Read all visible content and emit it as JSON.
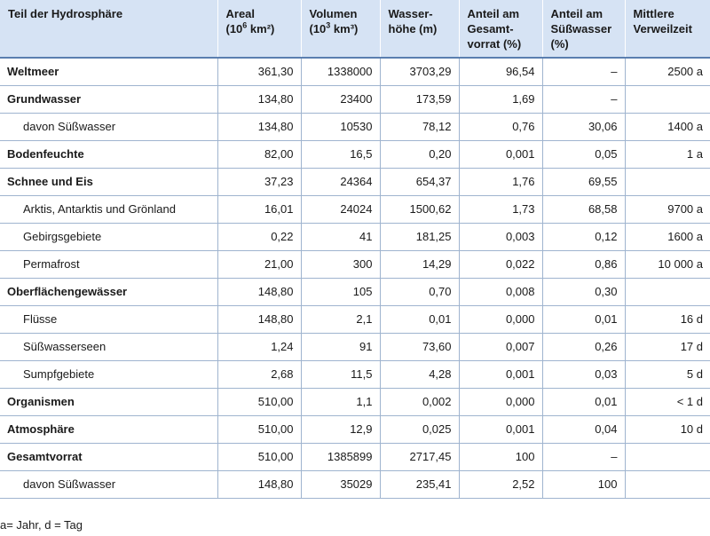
{
  "headers": [
    {
      "text": "Teil der Hydrosphäre"
    },
    {
      "text": "Areal",
      "line2": "(10",
      "sup": "6",
      "line2b": " km²)"
    },
    {
      "text": "Volumen",
      "line2": "(10",
      "sup": "3",
      "line2b": " km³)"
    },
    {
      "text": "Wasser-",
      "line2": "höhe (m)"
    },
    {
      "text": "Anteil am",
      "line2": "Gesamt-",
      "line3": "vorrat (%)"
    },
    {
      "text": "Anteil am",
      "line2": "Süßwasser",
      "line3": "(%)"
    },
    {
      "text": "Mittlere",
      "line2": "Verweilzeit"
    }
  ],
  "rows": [
    {
      "name": "Weltmeer",
      "style": "bold",
      "cells": [
        "361,30",
        "1338000",
        "3703,29",
        "96,54",
        "–",
        "2500 a"
      ]
    },
    {
      "name": "Grundwasser",
      "style": "bold",
      "cells": [
        "134,80",
        "23400",
        "173,59",
        "1,69",
        "–",
        ""
      ]
    },
    {
      "name": "davon Süßwasser",
      "style": "indent",
      "cells": [
        "134,80",
        "10530",
        "78,12",
        "0,76",
        "30,06",
        "1400 a"
      ]
    },
    {
      "name": "Bodenfeuchte",
      "style": "bold",
      "cells": [
        "82,00",
        "16,5",
        "0,20",
        "0,001",
        "0,05",
        "1 a"
      ]
    },
    {
      "name": "Schnee und Eis",
      "style": "bold",
      "cells": [
        "37,23",
        "24364",
        "654,37",
        "1,76",
        "69,55",
        ""
      ]
    },
    {
      "name": "Arktis, Antarktis und Grönland",
      "style": "indent",
      "cells": [
        "16,01",
        "24024",
        "1500,62",
        "1,73",
        "68,58",
        "9700 a"
      ]
    },
    {
      "name": "Gebirgsgebiete",
      "style": "indent",
      "cells": [
        "0,22",
        "41",
        "181,25",
        "0,003",
        "0,12",
        "1600 a"
      ]
    },
    {
      "name": "Permafrost",
      "style": "indent",
      "cells": [
        "21,00",
        "300",
        "14,29",
        "0,022",
        "0,86",
        "10 000 a"
      ]
    },
    {
      "name": "Oberflächengewässer",
      "style": "bold",
      "cells": [
        "148,80",
        "105",
        "0,70",
        "0,008",
        "0,30",
        ""
      ]
    },
    {
      "name": "Flüsse",
      "style": "indent",
      "cells": [
        "148,80",
        "2,1",
        "0,01",
        "0,000",
        "0,01",
        "16 d"
      ]
    },
    {
      "name": "Süßwasserseen",
      "style": "indent",
      "cells": [
        "1,24",
        "91",
        "73,60",
        "0,007",
        "0,26",
        "17 d"
      ]
    },
    {
      "name": "Sumpfgebiete",
      "style": "indent",
      "cells": [
        "2,68",
        "11,5",
        "4,28",
        "0,001",
        "0,03",
        "5 d"
      ]
    },
    {
      "name": "Organismen",
      "style": "bold",
      "cells": [
        "510,00",
        "1,1",
        "0,002",
        "0,000",
        "0,01",
        "< 1 d"
      ]
    },
    {
      "name": "Atmosphäre",
      "style": "bold",
      "cells": [
        "510,00",
        "12,9",
        "0,025",
        "0,001",
        "0,04",
        "10 d"
      ]
    },
    {
      "name": "Gesamtvorrat",
      "style": "bold",
      "cells": [
        "510,00",
        "1385899",
        "2717,45",
        "100",
        "–",
        ""
      ]
    },
    {
      "name": "davon Süßwasser",
      "style": "indent",
      "cells": [
        "148,80",
        "35029",
        "235,41",
        "2,52",
        "100",
        ""
      ]
    }
  ],
  "footnote": "a= Jahr, d = Tag",
  "colors": {
    "header_bg": "#d6e3f4",
    "grid": "#9fb4cf"
  }
}
